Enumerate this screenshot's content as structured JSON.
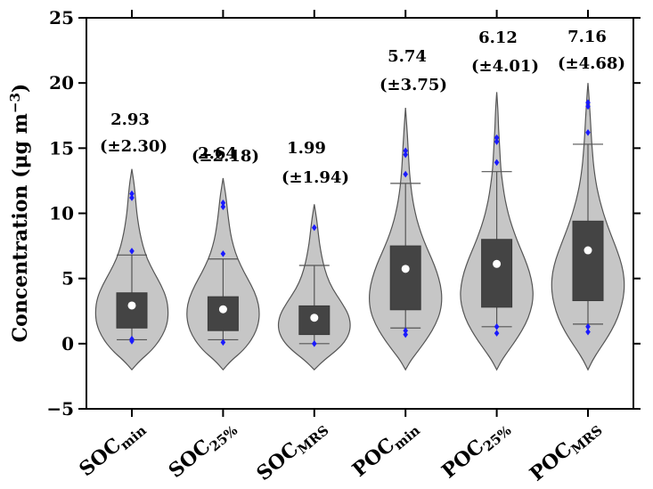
{
  "chart_data": {
    "type": "violin",
    "ylabel": "Concentration (μg m⁻³)",
    "ylabel_parts": {
      "main": "Concentration (μg m",
      "sup": "−3",
      "close": ")"
    },
    "ylim": [
      -5,
      25
    ],
    "yticks": [
      -5,
      0,
      5,
      10,
      15,
      20,
      25
    ],
    "grid": false,
    "categories": [
      {
        "base": "SOC",
        "sub": "min"
      },
      {
        "base": "SOC",
        "sub": "25%"
      },
      {
        "base": "SOC",
        "sub": "MRS"
      },
      {
        "base": "POC",
        "sub": "min"
      },
      {
        "base": "POC",
        "sub": "25%"
      },
      {
        "base": "POC",
        "sub": "MRS"
      }
    ],
    "annotations": [
      {
        "mean": "2.93",
        "sd": "(±2.30)"
      },
      {
        "mean": "2.64",
        "sd": "(±2.18)"
      },
      {
        "mean": "1.99",
        "sd": "(±1.94)"
      },
      {
        "mean": "5.74",
        "sd": "(±3.75)"
      },
      {
        "mean": "6.12",
        "sd": "(±4.01)"
      },
      {
        "mean": "7.16",
        "sd": "(±4.68)"
      }
    ],
    "series": [
      {
        "mean": 2.93,
        "q1": 1.2,
        "q3": 3.9,
        "whisker_low": 0.3,
        "whisker_high": 6.8,
        "ymin": -2.0,
        "ymax": 13.4,
        "outliers": [
          0.2,
          0.35,
          7.1,
          11.2,
          11.5
        ],
        "density": [
          [
            -2.0,
            0.0
          ],
          [
            -1.3,
            0.22
          ],
          [
            -0.5,
            0.55
          ],
          [
            0.5,
            0.82
          ],
          [
            1.5,
            0.97
          ],
          [
            2.5,
            1.0
          ],
          [
            3.5,
            0.95
          ],
          [
            4.5,
            0.8
          ],
          [
            5.5,
            0.6
          ],
          [
            6.5,
            0.42
          ],
          [
            7.5,
            0.3
          ],
          [
            8.5,
            0.22
          ],
          [
            9.5,
            0.16
          ],
          [
            10.5,
            0.12
          ],
          [
            11.5,
            0.09
          ],
          [
            12.5,
            0.05
          ],
          [
            13.4,
            0.0
          ]
        ]
      },
      {
        "mean": 2.64,
        "q1": 1.0,
        "q3": 3.6,
        "whisker_low": 0.3,
        "whisker_high": 6.5,
        "ymin": -2.0,
        "ymax": 12.7,
        "outliers": [
          0.1,
          6.9,
          10.5,
          10.8
        ],
        "density": [
          [
            -2.0,
            0.0
          ],
          [
            -1.3,
            0.22
          ],
          [
            -0.5,
            0.56
          ],
          [
            0.5,
            0.83
          ],
          [
            1.5,
            0.97
          ],
          [
            2.5,
            1.0
          ],
          [
            3.5,
            0.93
          ],
          [
            4.5,
            0.77
          ],
          [
            5.5,
            0.57
          ],
          [
            6.5,
            0.4
          ],
          [
            7.5,
            0.28
          ],
          [
            8.5,
            0.2
          ],
          [
            9.5,
            0.15
          ],
          [
            10.5,
            0.11
          ],
          [
            11.5,
            0.07
          ],
          [
            12.7,
            0.0
          ]
        ]
      },
      {
        "mean": 1.99,
        "q1": 0.7,
        "q3": 2.9,
        "whisker_low": 0.0,
        "whisker_high": 6.0,
        "ymin": -2.0,
        "ymax": 10.7,
        "outliers": [
          0.0,
          8.9
        ],
        "density": [
          [
            -2.0,
            0.0
          ],
          [
            -1.3,
            0.25
          ],
          [
            -0.5,
            0.62
          ],
          [
            0.3,
            0.88
          ],
          [
            1.2,
            1.0
          ],
          [
            2.2,
            0.95
          ],
          [
            3.2,
            0.74
          ],
          [
            4.2,
            0.5
          ],
          [
            5.2,
            0.34
          ],
          [
            6.2,
            0.24
          ],
          [
            7.2,
            0.17
          ],
          [
            8.2,
            0.12
          ],
          [
            9.2,
            0.08
          ],
          [
            10.0,
            0.04
          ],
          [
            10.7,
            0.0
          ]
        ]
      },
      {
        "mean": 5.74,
        "q1": 2.6,
        "q3": 7.5,
        "whisker_low": 1.2,
        "whisker_high": 12.3,
        "ymin": -2.0,
        "ymax": 18.1,
        "outliers": [
          0.7,
          1.0,
          13.0,
          14.5,
          14.8
        ],
        "density": [
          [
            -2.0,
            0.0
          ],
          [
            -1.3,
            0.14
          ],
          [
            -0.5,
            0.36
          ],
          [
            0.5,
            0.62
          ],
          [
            1.5,
            0.83
          ],
          [
            2.5,
            0.96
          ],
          [
            3.5,
            1.0
          ],
          [
            4.5,
            0.96
          ],
          [
            5.5,
            0.86
          ],
          [
            6.5,
            0.72
          ],
          [
            7.5,
            0.56
          ],
          [
            8.5,
            0.42
          ],
          [
            9.5,
            0.31
          ],
          [
            10.5,
            0.23
          ],
          [
            11.5,
            0.17
          ],
          [
            12.5,
            0.13
          ],
          [
            13.5,
            0.1
          ],
          [
            14.5,
            0.08
          ],
          [
            15.5,
            0.06
          ],
          [
            16.5,
            0.04
          ],
          [
            17.3,
            0.02
          ],
          [
            18.1,
            0.0
          ]
        ]
      },
      {
        "mean": 6.12,
        "q1": 2.8,
        "q3": 8.0,
        "whisker_low": 1.3,
        "whisker_high": 13.2,
        "ymin": -2.0,
        "ymax": 19.3,
        "outliers": [
          0.8,
          1.3,
          13.9,
          15.5,
          15.8
        ],
        "density": [
          [
            -2.0,
            0.0
          ],
          [
            -1.3,
            0.13
          ],
          [
            -0.5,
            0.33
          ],
          [
            0.5,
            0.58
          ],
          [
            1.5,
            0.79
          ],
          [
            2.5,
            0.93
          ],
          [
            3.5,
            1.0
          ],
          [
            4.5,
            0.98
          ],
          [
            5.5,
            0.9
          ],
          [
            6.5,
            0.77
          ],
          [
            7.5,
            0.62
          ],
          [
            8.5,
            0.48
          ],
          [
            9.5,
            0.36
          ],
          [
            10.5,
            0.27
          ],
          [
            11.5,
            0.2
          ],
          [
            12.5,
            0.15
          ],
          [
            13.5,
            0.11
          ],
          [
            14.5,
            0.09
          ],
          [
            15.5,
            0.07
          ],
          [
            16.5,
            0.05
          ],
          [
            17.5,
            0.04
          ],
          [
            18.5,
            0.02
          ],
          [
            19.3,
            0.0
          ]
        ]
      },
      {
        "mean": 7.16,
        "q1": 3.3,
        "q3": 9.4,
        "whisker_low": 1.5,
        "whisker_high": 15.3,
        "ymin": -2.0,
        "ymax": 20.0,
        "outliers": [
          0.9,
          1.3,
          16.2,
          18.2,
          18.5
        ],
        "density": [
          [
            -2.0,
            0.0
          ],
          [
            -1.3,
            0.12
          ],
          [
            -0.5,
            0.3
          ],
          [
            0.5,
            0.54
          ],
          [
            1.5,
            0.74
          ],
          [
            2.5,
            0.88
          ],
          [
            3.5,
            0.97
          ],
          [
            4.5,
            1.0
          ],
          [
            5.5,
            0.97
          ],
          [
            6.5,
            0.88
          ],
          [
            7.5,
            0.75
          ],
          [
            8.5,
            0.61
          ],
          [
            9.5,
            0.48
          ],
          [
            10.5,
            0.37
          ],
          [
            11.5,
            0.28
          ],
          [
            12.5,
            0.21
          ],
          [
            13.5,
            0.16
          ],
          [
            14.5,
            0.13
          ],
          [
            15.5,
            0.1
          ],
          [
            16.5,
            0.08
          ],
          [
            17.5,
            0.06
          ],
          [
            18.5,
            0.04
          ],
          [
            19.3,
            0.02
          ],
          [
            20.0,
            0.0
          ]
        ]
      }
    ],
    "colors": {
      "violin_fill": "#c6c6c6",
      "violin_edge": "#555555",
      "box_fill": "#444444",
      "whisker": "#555555",
      "mean_marker": "#ffffff",
      "outlier": "#1a1aff",
      "axis": "#000000"
    }
  }
}
